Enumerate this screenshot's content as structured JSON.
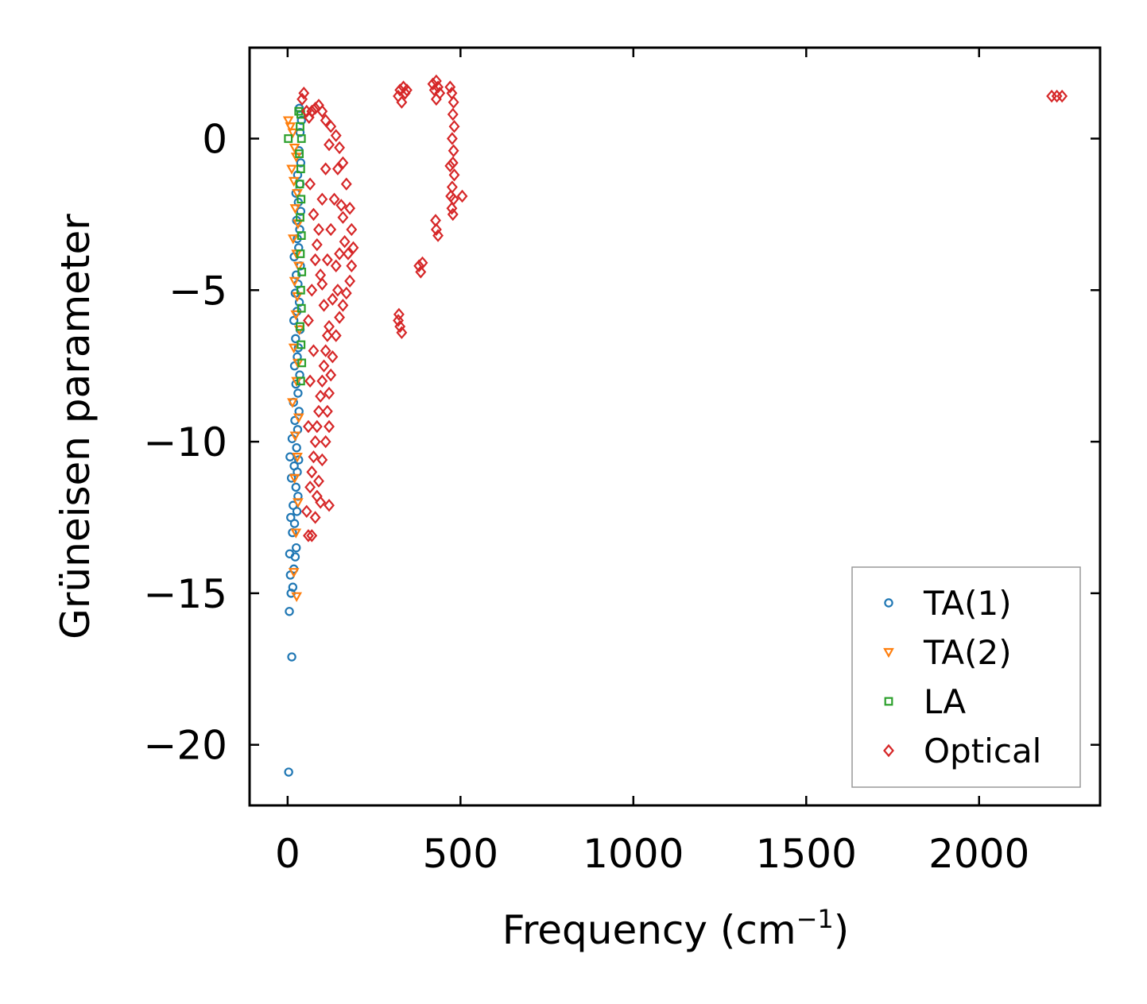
{
  "chart_data": {
    "type": "scatter",
    "title": "",
    "xlabel": "Frequency (cm",
    "xlabel_sup": "−1",
    "xlabel_end": ")",
    "ylabel": "Grüneisen parameter",
    "xlim": [
      -110,
      2350
    ],
    "ylim": [
      -22.0,
      3.0
    ],
    "xticks": [
      0,
      500,
      1000,
      1500,
      2000
    ],
    "xtick_labels": [
      "0",
      "500",
      "1000",
      "1500",
      "2000"
    ],
    "yticks": [
      0,
      -5,
      -10,
      -15,
      -20
    ],
    "ytick_labels": [
      "0",
      "−5",
      "−10",
      "−15",
      "−20"
    ],
    "grid": false,
    "legend_position": "lower-right",
    "series": [
      {
        "name": "TA(1)",
        "marker": "circle",
        "color": "#1f77b4",
        "points": [
          [
            3,
            -20.9
          ],
          [
            12,
            -17.1
          ],
          [
            5,
            -15.6
          ],
          [
            10,
            -15.0
          ],
          [
            15,
            -14.8
          ],
          [
            8,
            -14.4
          ],
          [
            18,
            -14.2
          ],
          [
            22,
            -13.8
          ],
          [
            6,
            -13.7
          ],
          [
            25,
            -13.5
          ],
          [
            14,
            -13.0
          ],
          [
            20,
            -12.7
          ],
          [
            9,
            -12.5
          ],
          [
            27,
            -12.3
          ],
          [
            16,
            -12.1
          ],
          [
            30,
            -11.8
          ],
          [
            24,
            -11.5
          ],
          [
            11,
            -11.2
          ],
          [
            28,
            -11.0
          ],
          [
            19,
            -10.8
          ],
          [
            32,
            -10.6
          ],
          [
            7,
            -10.5
          ],
          [
            26,
            -10.2
          ],
          [
            13,
            -9.9
          ],
          [
            29,
            -9.6
          ],
          [
            21,
            -9.3
          ],
          [
            33,
            -9.0
          ],
          [
            17,
            -8.7
          ],
          [
            30,
            -8.4
          ],
          [
            24,
            -8.1
          ],
          [
            35,
            -7.8
          ],
          [
            20,
            -7.5
          ],
          [
            28,
            -7.2
          ],
          [
            31,
            -6.9
          ],
          [
            23,
            -6.6
          ],
          [
            36,
            -6.3
          ],
          [
            18,
            -6.0
          ],
          [
            27,
            -5.7
          ],
          [
            34,
            -5.4
          ],
          [
            22,
            -5.1
          ],
          [
            30,
            -4.8
          ],
          [
            25,
            -4.5
          ],
          [
            37,
            -4.2
          ],
          [
            19,
            -3.9
          ],
          [
            32,
            -3.6
          ],
          [
            28,
            -3.3
          ],
          [
            35,
            -3.0
          ],
          [
            26,
            -2.7
          ],
          [
            38,
            -2.4
          ],
          [
            31,
            -2.1
          ],
          [
            24,
            -1.8
          ],
          [
            36,
            -1.5
          ],
          [
            29,
            -1.2
          ],
          [
            38,
            -0.8
          ],
          [
            33,
            -0.4
          ],
          [
            36,
            0.2
          ],
          [
            40,
            0.6
          ],
          [
            34,
            1.0
          ]
        ]
      },
      {
        "name": "TA(2)",
        "marker": "triangle-down",
        "color": "#ff7f0e",
        "points": [
          [
            2,
            0.6
          ],
          [
            8,
            0.4
          ],
          [
            15,
            0.2
          ],
          [
            20,
            -0.3
          ],
          [
            25,
            -0.6
          ],
          [
            12,
            -1.0
          ],
          [
            18,
            -1.4
          ],
          [
            28,
            -1.8
          ],
          [
            22,
            -2.3
          ],
          [
            30,
            -2.8
          ],
          [
            16,
            -3.3
          ],
          [
            26,
            -3.8
          ],
          [
            32,
            -4.2
          ],
          [
            20,
            -4.7
          ],
          [
            28,
            -5.2
          ],
          [
            24,
            -5.8
          ],
          [
            34,
            -6.3
          ],
          [
            18,
            -6.9
          ],
          [
            30,
            -7.4
          ],
          [
            26,
            -8.0
          ],
          [
            14,
            -8.7
          ],
          [
            32,
            -9.2
          ],
          [
            22,
            -9.8
          ],
          [
            28,
            -10.5
          ],
          [
            20,
            -11.2
          ],
          [
            30,
            -12.0
          ],
          [
            24,
            -13.0
          ],
          [
            18,
            -14.3
          ],
          [
            26,
            -15.1
          ]
        ]
      },
      {
        "name": "LA",
        "marker": "square",
        "color": "#2ca02c",
        "points": [
          [
            2,
            0.0
          ],
          [
            32,
            0.9
          ],
          [
            38,
            0.8
          ],
          [
            36,
            0.4
          ],
          [
            40,
            0.0
          ],
          [
            34,
            -0.5
          ],
          [
            38,
            -1.0
          ],
          [
            35,
            -1.5
          ],
          [
            39,
            -2.0
          ],
          [
            36,
            -2.6
          ],
          [
            40,
            -3.2
          ],
          [
            37,
            -3.8
          ],
          [
            41,
            -4.4
          ],
          [
            38,
            -5.0
          ],
          [
            40,
            -5.6
          ],
          [
            36,
            -6.2
          ],
          [
            39,
            -6.8
          ],
          [
            41,
            -7.4
          ],
          [
            38,
            -8.0
          ]
        ]
      },
      {
        "name": "Optical",
        "marker": "diamond",
        "color": "#d62728",
        "points": [
          [
            47,
            1.5
          ],
          [
            42,
            1.3
          ],
          [
            55,
            0.9
          ],
          [
            62,
            0.7
          ],
          [
            70,
            0.9
          ],
          [
            80,
            1.0
          ],
          [
            90,
            1.1
          ],
          [
            100,
            0.9
          ],
          [
            110,
            0.6
          ],
          [
            125,
            0.4
          ],
          [
            140,
            0.1
          ],
          [
            150,
            -0.3
          ],
          [
            160,
            -0.8
          ],
          [
            170,
            -1.5
          ],
          [
            180,
            -2.3
          ],
          [
            185,
            -3.0
          ],
          [
            190,
            -3.6
          ],
          [
            185,
            -4.2
          ],
          [
            180,
            -4.7
          ],
          [
            170,
            -5.1
          ],
          [
            160,
            -5.5
          ],
          [
            150,
            -5.9
          ],
          [
            140,
            -6.5
          ],
          [
            130,
            -7.2
          ],
          [
            125,
            -7.8
          ],
          [
            120,
            -8.4
          ],
          [
            115,
            -9.0
          ],
          [
            120,
            -9.5
          ],
          [
            110,
            -10.0
          ],
          [
            100,
            -10.6
          ],
          [
            90,
            -11.3
          ],
          [
            85,
            -11.8
          ],
          [
            95,
            -12.0
          ],
          [
            80,
            -12.5
          ],
          [
            70,
            -13.1
          ],
          [
            60,
            -13.1
          ],
          [
            55,
            -12.3
          ],
          [
            65,
            -11.5
          ],
          [
            75,
            -10.5
          ],
          [
            85,
            -9.5
          ],
          [
            95,
            -8.5
          ],
          [
            105,
            -7.5
          ],
          [
            115,
            -6.5
          ],
          [
            60,
            -6.0
          ],
          [
            70,
            -5.0
          ],
          [
            80,
            -4.0
          ],
          [
            90,
            -3.0
          ],
          [
            100,
            -2.0
          ],
          [
            110,
            -1.0
          ],
          [
            120,
            -0.2
          ],
          [
            65,
            -1.5
          ],
          [
            75,
            -2.5
          ],
          [
            85,
            -3.5
          ],
          [
            95,
            -4.5
          ],
          [
            105,
            -5.5
          ],
          [
            115,
            -4.0
          ],
          [
            125,
            -3.0
          ],
          [
            135,
            -2.0
          ],
          [
            145,
            -1.0
          ],
          [
            155,
            -2.2
          ],
          [
            165,
            -3.4
          ],
          [
            140,
            -4.2
          ],
          [
            130,
            -5.3
          ],
          [
            120,
            -6.2
          ],
          [
            110,
            -7.0
          ],
          [
            100,
            -8.0
          ],
          [
            90,
            -9.0
          ],
          [
            80,
            -10.0
          ],
          [
            70,
            -11.0
          ],
          [
            75,
            -7.0
          ],
          [
            65,
            -8.0
          ],
          [
            60,
            -9.5
          ],
          [
            120,
            -12.1
          ],
          [
            100,
            -4.8
          ],
          [
            150,
            -3.8
          ],
          [
            175,
            -3.8
          ],
          [
            160,
            -2.6
          ],
          [
            145,
            -5.0
          ],
          [
            320,
            1.4
          ],
          [
            325,
            1.6
          ],
          [
            330,
            1.2
          ],
          [
            335,
            1.7
          ],
          [
            340,
            1.5
          ],
          [
            345,
            1.6
          ],
          [
            320,
            -6.0
          ],
          [
            325,
            -6.2
          ],
          [
            330,
            -6.4
          ],
          [
            322,
            -5.8
          ],
          [
            420,
            1.8
          ],
          [
            425,
            1.6
          ],
          [
            430,
            1.9
          ],
          [
            435,
            1.7
          ],
          [
            440,
            1.5
          ],
          [
            430,
            1.3
          ],
          [
            380,
            -4.2
          ],
          [
            385,
            -4.4
          ],
          [
            390,
            -4.1
          ],
          [
            430,
            -3.0
          ],
          [
            435,
            -3.2
          ],
          [
            428,
            -2.7
          ],
          [
            470,
            1.7
          ],
          [
            475,
            1.5
          ],
          [
            480,
            1.2
          ],
          [
            478,
            0.8
          ],
          [
            482,
            0.4
          ],
          [
            476,
            0.0
          ],
          [
            480,
            -0.4
          ],
          [
            478,
            -0.8
          ],
          [
            482,
            -1.2
          ],
          [
            476,
            -1.6
          ],
          [
            480,
            -2.0
          ],
          [
            475,
            -2.3
          ],
          [
            478,
            -2.5
          ],
          [
            505,
            -1.9
          ],
          [
            470,
            -0.9
          ],
          [
            472,
            -1.9
          ],
          [
            2210,
            1.4
          ],
          [
            2225,
            1.4
          ],
          [
            2240,
            1.4
          ]
        ]
      }
    ]
  }
}
